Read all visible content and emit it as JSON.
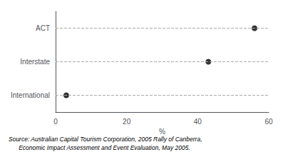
{
  "chart_data": {
    "type": "scatter",
    "categories": [
      "International",
      "Interstate",
      "ACT"
    ],
    "values": [
      3,
      43,
      56
    ],
    "xlabel": "%",
    "xlim": [
      0,
      60
    ],
    "xticks": [
      0,
      20,
      40,
      60
    ],
    "color": "#000000",
    "marker": "circle",
    "line_style": "dashed",
    "annotations": [
      "Source: Australian Capital Tourism Corporation, 2005 Rally of Canberra,",
      "      Economic Impact Assessment and Event Evaluation, May 2005."
    ]
  }
}
